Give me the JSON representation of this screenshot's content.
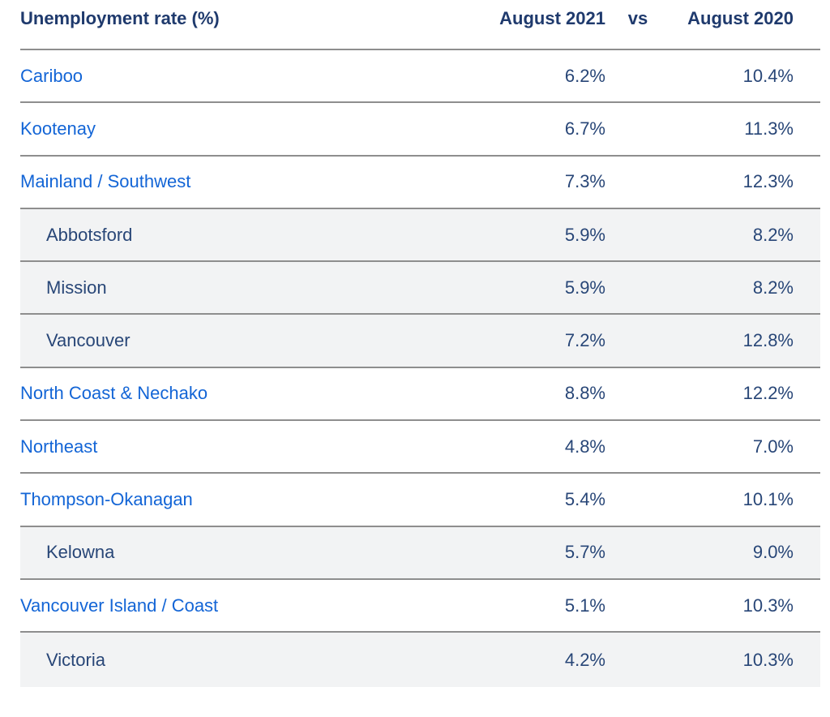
{
  "colors": {
    "header_navy": "#1F3A6D",
    "link_blue": "#1365D6",
    "value_navy": "#284677",
    "subrow_bg": "#F2F3F4",
    "border_gray": "#8E8E8E",
    "page_bg": "#FFFFFF"
  },
  "table": {
    "header": {
      "label_col": "Unemployment rate (%)",
      "col_2021": "August 2021",
      "vs": "vs",
      "col_2020": "August 2020"
    },
    "rows": [
      {
        "name": "Cariboo",
        "type": "region",
        "aug2021": "6.2%",
        "aug2020": "10.4%"
      },
      {
        "name": "Kootenay",
        "type": "region",
        "aug2021": "6.7%",
        "aug2020": "11.3%"
      },
      {
        "name": "Mainland / Southwest",
        "type": "region",
        "aug2021": "7.3%",
        "aug2020": "12.3%"
      },
      {
        "name": "Abbotsford",
        "type": "sub",
        "aug2021": "5.9%",
        "aug2020": "8.2%"
      },
      {
        "name": "Mission",
        "type": "sub",
        "aug2021": "5.9%",
        "aug2020": "8.2%"
      },
      {
        "name": "Vancouver",
        "type": "sub",
        "aug2021": "7.2%",
        "aug2020": "12.8%"
      },
      {
        "name": "North Coast & Nechako",
        "type": "region",
        "aug2021": "8.8%",
        "aug2020": "12.2%"
      },
      {
        "name": "Northeast",
        "type": "region",
        "aug2021": "4.8%",
        "aug2020": "7.0%"
      },
      {
        "name": "Thompson-Okanagan",
        "type": "region",
        "aug2021": "5.4%",
        "aug2020": "10.1%"
      },
      {
        "name": "Kelowna",
        "type": "sub",
        "aug2021": "5.7%",
        "aug2020": "9.0%"
      },
      {
        "name": "Vancouver Island / Coast",
        "type": "region",
        "aug2021": "5.1%",
        "aug2020": "10.3%"
      },
      {
        "name": "Victoria",
        "type": "sub",
        "aug2021": "4.2%",
        "aug2020": "10.3%"
      }
    ]
  },
  "chart_data": {
    "type": "table",
    "title": "Unemployment rate (%)",
    "columns": [
      "Unemployment rate (%)",
      "August 2021",
      "August 2020"
    ],
    "rows": [
      {
        "region": "Cariboo",
        "level": "region",
        "aug_2021_pct": 6.2,
        "aug_2020_pct": 10.4
      },
      {
        "region": "Kootenay",
        "level": "region",
        "aug_2021_pct": 6.7,
        "aug_2020_pct": 11.3
      },
      {
        "region": "Mainland / Southwest",
        "level": "region",
        "aug_2021_pct": 7.3,
        "aug_2020_pct": 12.3
      },
      {
        "region": "Abbotsford",
        "level": "subregion",
        "aug_2021_pct": 5.9,
        "aug_2020_pct": 8.2
      },
      {
        "region": "Mission",
        "level": "subregion",
        "aug_2021_pct": 5.9,
        "aug_2020_pct": 8.2
      },
      {
        "region": "Vancouver",
        "level": "subregion",
        "aug_2021_pct": 7.2,
        "aug_2020_pct": 12.8
      },
      {
        "region": "North Coast & Nechako",
        "level": "region",
        "aug_2021_pct": 8.8,
        "aug_2020_pct": 12.2
      },
      {
        "region": "Northeast",
        "level": "region",
        "aug_2021_pct": 4.8,
        "aug_2020_pct": 7.0
      },
      {
        "region": "Thompson-Okanagan",
        "level": "region",
        "aug_2021_pct": 5.4,
        "aug_2020_pct": 10.1
      },
      {
        "region": "Kelowna",
        "level": "subregion",
        "aug_2021_pct": 5.7,
        "aug_2020_pct": 9.0
      },
      {
        "region": "Vancouver Island / Coast",
        "level": "region",
        "aug_2021_pct": 5.1,
        "aug_2020_pct": 10.3
      },
      {
        "region": "Victoria",
        "level": "subregion",
        "aug_2021_pct": 4.2,
        "aug_2020_pct": 10.3
      }
    ]
  }
}
